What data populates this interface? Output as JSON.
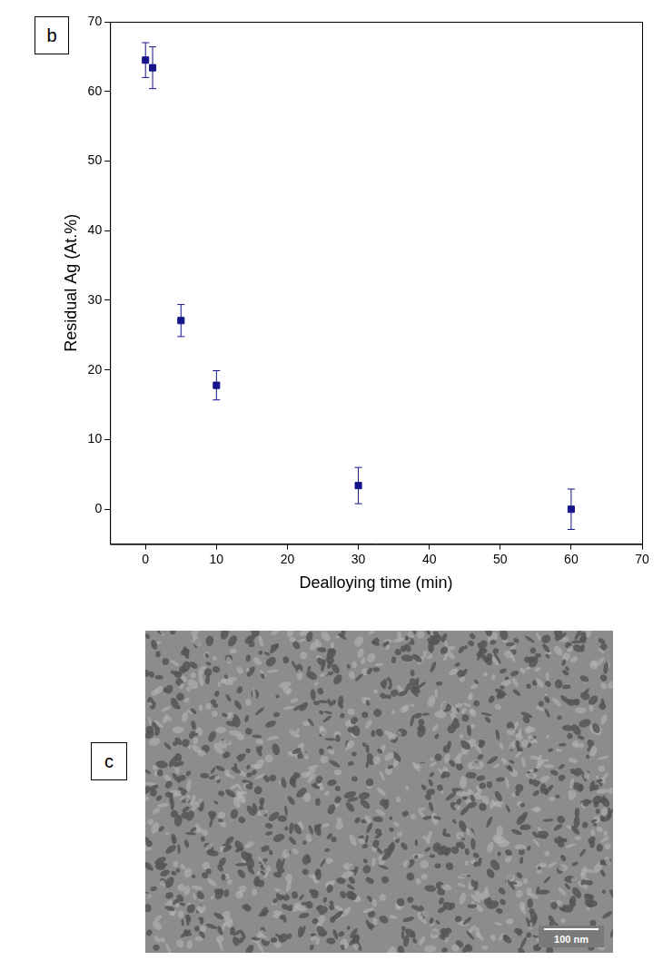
{
  "chart_data": {
    "type": "scatter",
    "panel_label": "b",
    "x_label": "Dealloying time (min)",
    "y_label": "Residual Ag (At.%)",
    "x": [
      0,
      1,
      5,
      10,
      30,
      60
    ],
    "series": [
      {
        "name": "Residual Ag",
        "color": "#14148c",
        "marker": "square",
        "values": [
          64.5,
          63.4,
          27.1,
          17.8,
          3.4,
          0.0
        ],
        "errors": [
          2.5,
          3.0,
          2.3,
          2.1,
          2.6,
          2.9
        ]
      }
    ],
    "xlim": [
      -5,
      70
    ],
    "xticks": [
      0,
      10,
      20,
      30,
      40,
      50,
      60,
      70
    ],
    "ylim": [
      -5,
      70
    ],
    "yticks": [
      0,
      10,
      20,
      30,
      40,
      50,
      60,
      70
    ],
    "grid": false
  },
  "image": {
    "panel_label": "c",
    "scale_bar": "100 nm"
  }
}
